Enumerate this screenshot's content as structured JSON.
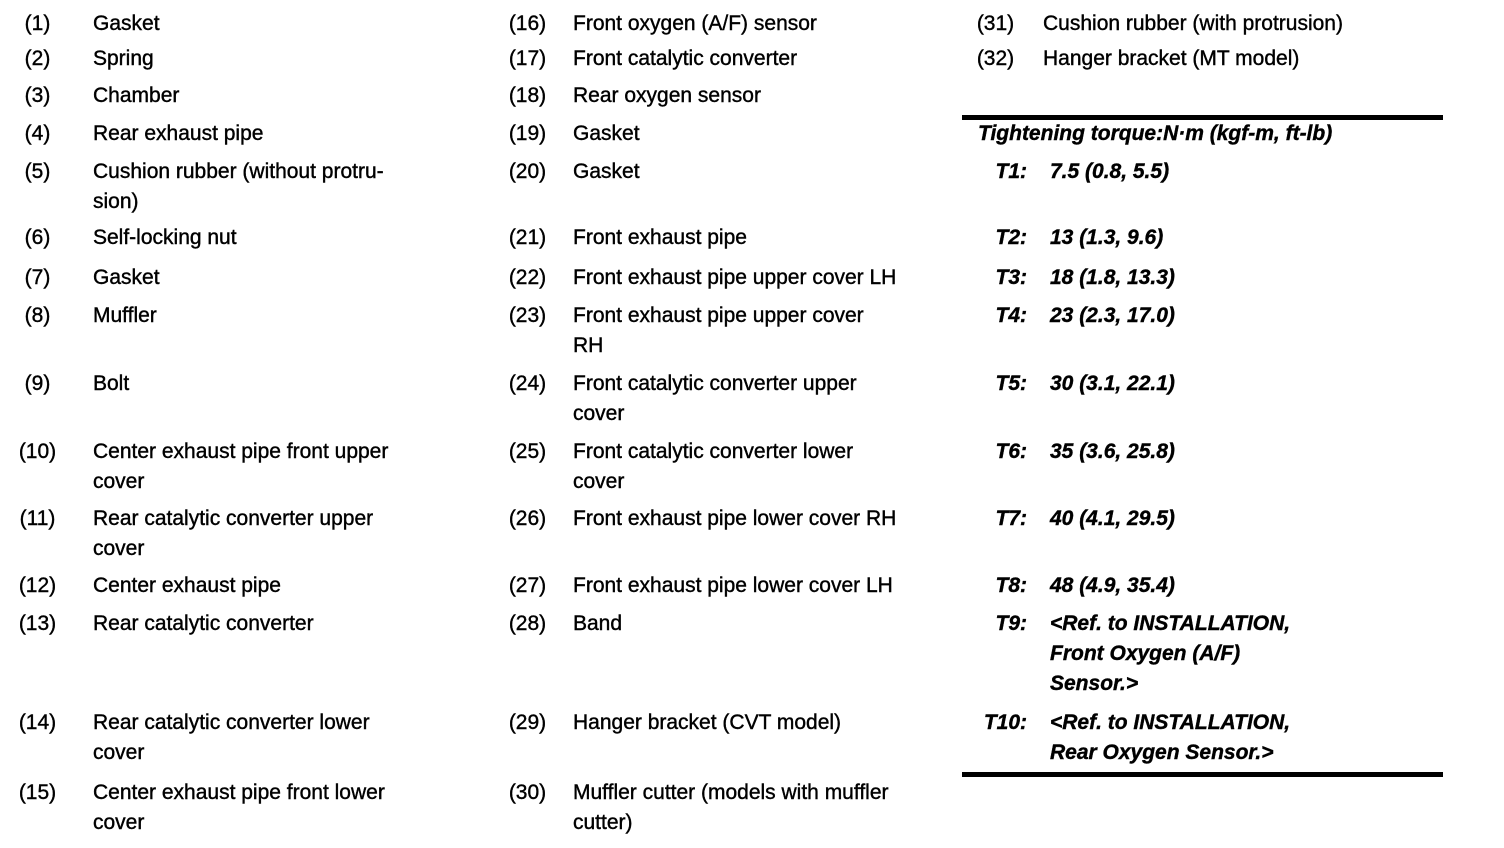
{
  "colors": {
    "background": "#ffffff",
    "text": "#000000",
    "rule": "#000000"
  },
  "legend": {
    "column1": [
      {
        "num": "(1)",
        "label": "Gasket"
      },
      {
        "num": "(2)",
        "label": "Spring"
      },
      {
        "num": "(3)",
        "label": "Chamber"
      },
      {
        "num": "(4)",
        "label": "Rear exhaust pipe"
      },
      {
        "num": "(5)",
        "label": "Cushion rubber (without protru-\nsion)"
      },
      {
        "num": "(6)",
        "label": "Self-locking nut"
      },
      {
        "num": "(7)",
        "label": "Gasket"
      },
      {
        "num": "(8)",
        "label": "Muffler"
      },
      {
        "num": "(9)",
        "label": "Bolt"
      },
      {
        "num": "(10)",
        "label": "Center exhaust pipe front upper\ncover"
      },
      {
        "num": "(11)",
        "label": "Rear catalytic converter upper\ncover"
      },
      {
        "num": "(12)",
        "label": "Center exhaust pipe"
      },
      {
        "num": "(13)",
        "label": "Rear catalytic converter"
      },
      {
        "num": "(14)",
        "label": "Rear catalytic converter lower\ncover"
      },
      {
        "num": "(15)",
        "label": "Center exhaust pipe front lower\ncover"
      }
    ],
    "column2": [
      {
        "num": "(16)",
        "label": "Front oxygen (A/F) sensor"
      },
      {
        "num": "(17)",
        "label": "Front catalytic converter"
      },
      {
        "num": "(18)",
        "label": "Rear oxygen sensor"
      },
      {
        "num": "(19)",
        "label": "Gasket"
      },
      {
        "num": "(20)",
        "label": "Gasket"
      },
      {
        "num": "(21)",
        "label": "Front exhaust pipe"
      },
      {
        "num": "(22)",
        "label": "Front exhaust pipe upper cover LH"
      },
      {
        "num": "(23)",
        "label": "Front exhaust pipe upper cover\nRH"
      },
      {
        "num": "(24)",
        "label": "Front catalytic converter upper\ncover"
      },
      {
        "num": "(25)",
        "label": "Front catalytic converter lower\ncover"
      },
      {
        "num": "(26)",
        "label": "Front exhaust pipe lower cover RH"
      },
      {
        "num": "(27)",
        "label": "Front exhaust pipe lower cover LH"
      },
      {
        "num": "(28)",
        "label": "Band"
      },
      {
        "num": "(29)",
        "label": "Hanger bracket (CVT model)"
      },
      {
        "num": "(30)",
        "label": "Muffler cutter (models with muffler\ncutter)"
      }
    ],
    "column3": [
      {
        "num": "(31)",
        "label": "Cushion rubber (with protrusion)"
      },
      {
        "num": "(32)",
        "label": "Hanger bracket (MT model)"
      }
    ]
  },
  "torque": {
    "title": "Tightening torque:N·m (kgf-m, ft-lb)",
    "entries": [
      {
        "label": "T1:",
        "value": "7.5 (0.8, 5.5)"
      },
      {
        "label": "T2:",
        "value": "13 (1.3, 9.6)"
      },
      {
        "label": "T3:",
        "value": "18 (1.8, 13.3)"
      },
      {
        "label": "T4:",
        "value": "23 (2.3, 17.0)"
      },
      {
        "label": "T5:",
        "value": "30 (3.1, 22.1)"
      },
      {
        "label": "T6:",
        "value": "35 (3.6, 25.8)"
      },
      {
        "label": "T7:",
        "value": "40 (4.1, 29.5)"
      },
      {
        "label": "T8:",
        "value": "48 (4.9, 35.4)"
      },
      {
        "label": "T9:",
        "value": "<Ref. to INSTALLATION,\nFront Oxygen (A/F)\nSensor.>"
      },
      {
        "label": "T10:",
        "value": "<Ref. to INSTALLATION,\nRear Oxygen Sensor.>"
      }
    ]
  }
}
